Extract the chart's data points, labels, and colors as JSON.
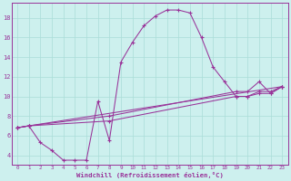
{
  "xlabel": "Windchill (Refroidissement éolien,°C)",
  "bg_color": "#cdf0ee",
  "line_color": "#993399",
  "xlim": [
    -0.5,
    23.5
  ],
  "ylim": [
    3,
    19.5
  ],
  "xticks": [
    0,
    1,
    2,
    3,
    4,
    5,
    6,
    7,
    8,
    9,
    10,
    11,
    12,
    13,
    14,
    15,
    16,
    17,
    18,
    19,
    20,
    21,
    22,
    23
  ],
  "yticks": [
    4,
    6,
    8,
    10,
    12,
    14,
    16,
    18
  ],
  "grid_color": "#aaddd8",
  "curve1_x": [
    0,
    1,
    2,
    3,
    4,
    5,
    6,
    7,
    8,
    9,
    10,
    11,
    12,
    13,
    14,
    15,
    16,
    17,
    18,
    19,
    20,
    21,
    22,
    23
  ],
  "curve1_y": [
    6.8,
    7.0,
    5.3,
    4.5,
    3.5,
    3.5,
    3.5,
    9.5,
    5.5,
    13.5,
    15.5,
    17.2,
    18.2,
    18.8,
    18.8,
    18.5,
    16.0,
    13.0,
    11.5,
    10.0,
    10.0,
    10.5,
    10.5,
    11.0
  ],
  "curve2_x": [
    0,
    1,
    23
  ],
  "curve2_y": [
    6.8,
    7.0,
    11.0
  ],
  "curve3_x": [
    0,
    1,
    8,
    19,
    20,
    21,
    22,
    23
  ],
  "curve3_y": [
    6.8,
    7.0,
    8.0,
    10.5,
    10.5,
    11.5,
    10.3,
    11.0
  ],
  "curve4_x": [
    0,
    1,
    8,
    19,
    20,
    21,
    22,
    23
  ],
  "curve4_y": [
    6.8,
    7.0,
    7.5,
    10.0,
    10.0,
    10.3,
    10.3,
    11.0
  ]
}
